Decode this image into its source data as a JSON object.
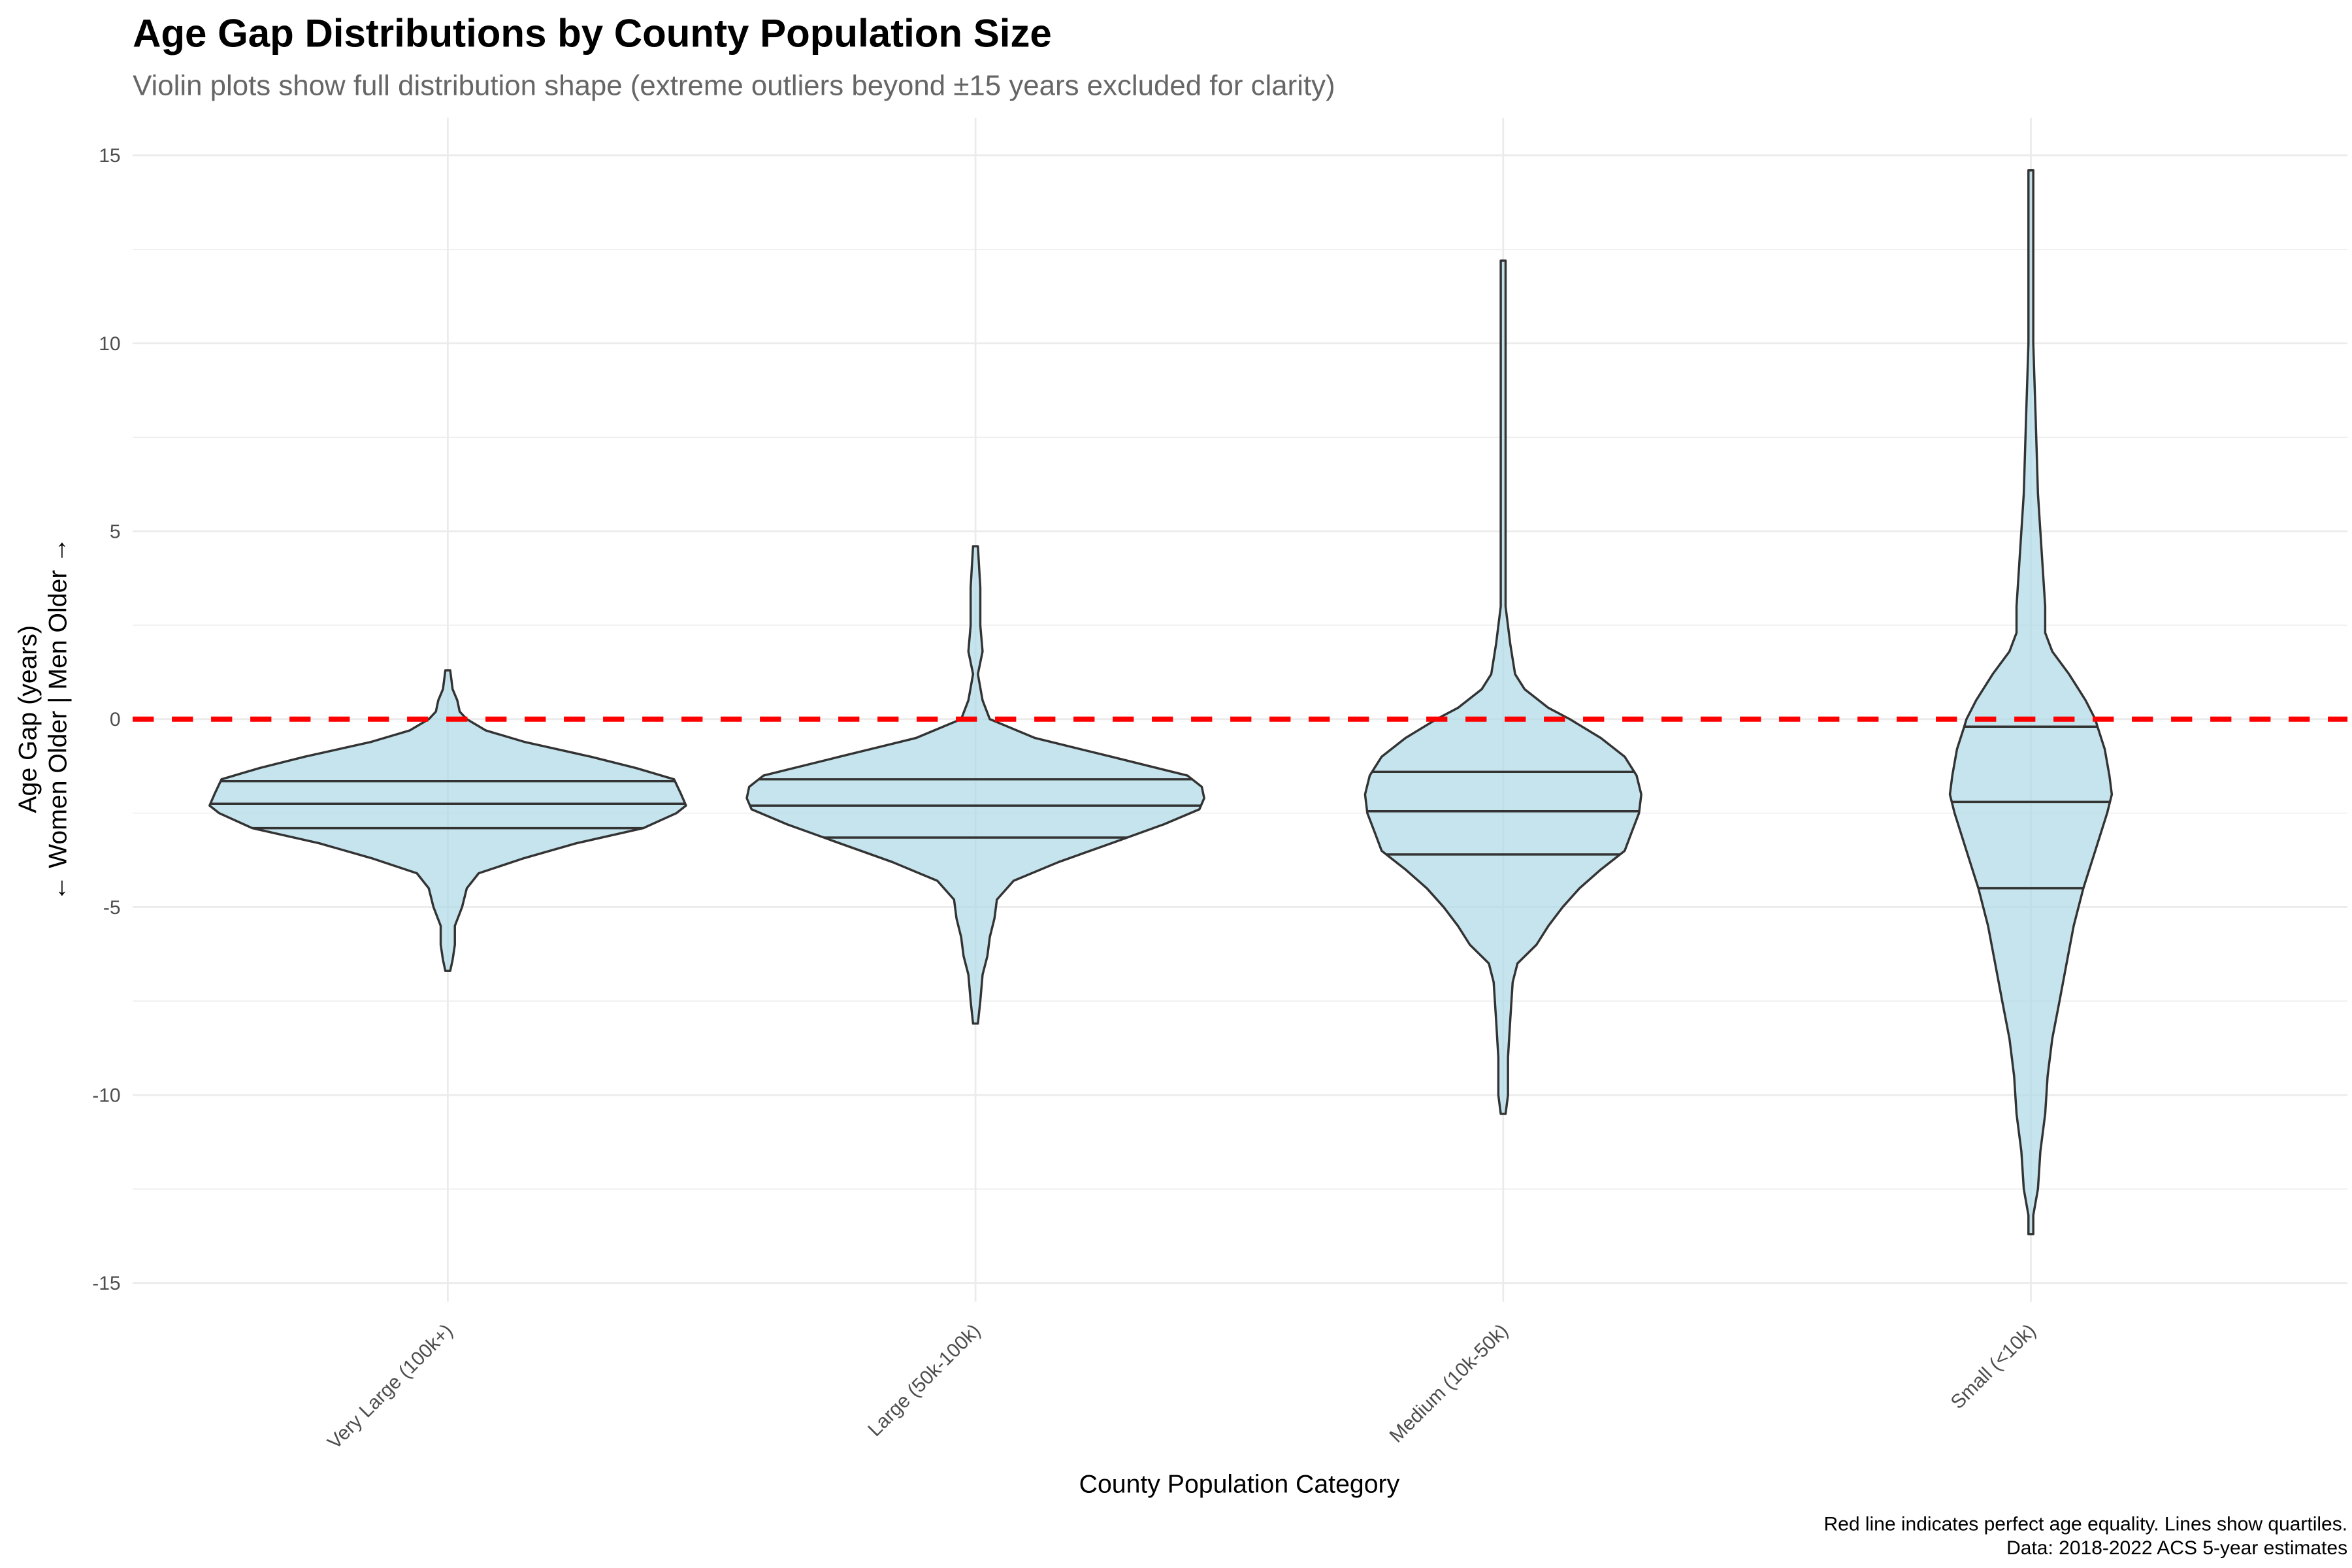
{
  "chart_data": {
    "type": "violin",
    "title": "Age Gap Distributions by County Population Size",
    "subtitle": "Violin plots show full distribution shape (extreme outliers beyond ±15 years excluded for clarity)",
    "xlabel": "County Population Category",
    "ylabel_line1": "Age Gap (years)",
    "ylabel_line2": "← Women Older  |  Men Older →",
    "caption_line1": "Red line indicates perfect age equality. Lines show quartiles.",
    "caption_line2": "Data: 2018-2022 ACS 5-year estimates",
    "ylim": [
      -15.5,
      16
    ],
    "yticks": [
      -15,
      -10,
      -5,
      0,
      5,
      10,
      15
    ],
    "grid": true,
    "fill_color": "#add8e6",
    "outline_color": "#333333",
    "reference_line": {
      "y": 0,
      "color": "#ff0000",
      "style": "dashed"
    },
    "categories": [
      "Very Large (100k+)",
      "Large (50k-100k)",
      "Medium (10k-50k)",
      "Small (<10k)"
    ],
    "violins": [
      {
        "category": "Very Large (100k+)",
        "quartiles": [
          -2.9,
          -2.25,
          -1.65
        ],
        "profile_y": [
          1.3,
          0.8,
          0.5,
          0.2,
          0,
          -0.3,
          -0.6,
          -1,
          -1.3,
          -1.6,
          -2,
          -2.3,
          -2.5,
          -2.9,
          -3.3,
          -3.7,
          -4.1,
          -4.5,
          -5,
          -5.5,
          -6,
          -6.4,
          -6.7
        ],
        "relative_density": [
          0.01,
          0.02,
          0.04,
          0.05,
          0.08,
          0.16,
          0.32,
          0.6,
          0.79,
          0.95,
          0.98,
          1.0,
          0.96,
          0.82,
          0.54,
          0.32,
          0.13,
          0.08,
          0.06,
          0.03,
          0.03,
          0.02,
          0.01
        ]
      },
      {
        "category": "Large (50k-100k)",
        "quartiles": [
          -3.15,
          -2.3,
          -1.6
        ],
        "profile_y": [
          4.6,
          3.5,
          2.5,
          1.8,
          1.2,
          0.5,
          0,
          -0.5,
          -1,
          -1.5,
          -1.8,
          -2.1,
          -2.4,
          -2.8,
          -3.3,
          -3.8,
          -4.3,
          -4.8,
          -5.3,
          -5.8,
          -6.3,
          -6.8,
          -7.5,
          -8.1
        ],
        "relative_density": [
          0.01,
          0.02,
          0.02,
          0.03,
          0.01,
          0.03,
          0.06,
          0.25,
          0.57,
          0.89,
          0.95,
          0.96,
          0.94,
          0.79,
          0.57,
          0.35,
          0.16,
          0.09,
          0.08,
          0.06,
          0.05,
          0.03,
          0.02,
          0.01
        ]
      },
      {
        "category": "Medium (10k-50k)",
        "quartiles": [
          -3.6,
          -2.45,
          -1.4
        ],
        "profile_y": [
          12.2,
          10,
          8,
          7,
          5,
          3,
          2,
          1.2,
          0.8,
          0.3,
          0,
          -0.5,
          -1,
          -1.5,
          -2,
          -2.5,
          -3,
          -3.5,
          -4,
          -4.5,
          -5,
          -5.5,
          -6,
          -6.5,
          -7,
          -8,
          -9,
          -10,
          -10.5
        ],
        "relative_density": [
          0.01,
          0.01,
          0.01,
          0.01,
          0.01,
          0.01,
          0.03,
          0.05,
          0.09,
          0.19,
          0.28,
          0.41,
          0.51,
          0.56,
          0.58,
          0.57,
          0.54,
          0.51,
          0.41,
          0.32,
          0.25,
          0.19,
          0.14,
          0.06,
          0.04,
          0.03,
          0.02,
          0.02,
          0.01
        ]
      },
      {
        "category": "Small (<10k)",
        "quartiles": [
          -4.5,
          -2.2,
          -0.2
        ],
        "profile_y": [
          14.6,
          12,
          10,
          8,
          6,
          5,
          4,
          3,
          2.3,
          1.8,
          1.2,
          0.5,
          0,
          -0.2,
          -0.8,
          -1.5,
          -2,
          -2.5,
          -3.5,
          -4.5,
          -5.5,
          -6.5,
          -7.5,
          -8.5,
          -9.5,
          -10.5,
          -11.5,
          -12.5,
          -13.2,
          -13.7
        ],
        "relative_density": [
          0.01,
          0.01,
          0.01,
          0.02,
          0.03,
          0.04,
          0.05,
          0.06,
          0.06,
          0.09,
          0.16,
          0.23,
          0.27,
          0.28,
          0.31,
          0.33,
          0.34,
          0.32,
          0.27,
          0.22,
          0.18,
          0.15,
          0.12,
          0.09,
          0.07,
          0.06,
          0.04,
          0.03,
          0.01,
          0.01
        ]
      }
    ]
  }
}
